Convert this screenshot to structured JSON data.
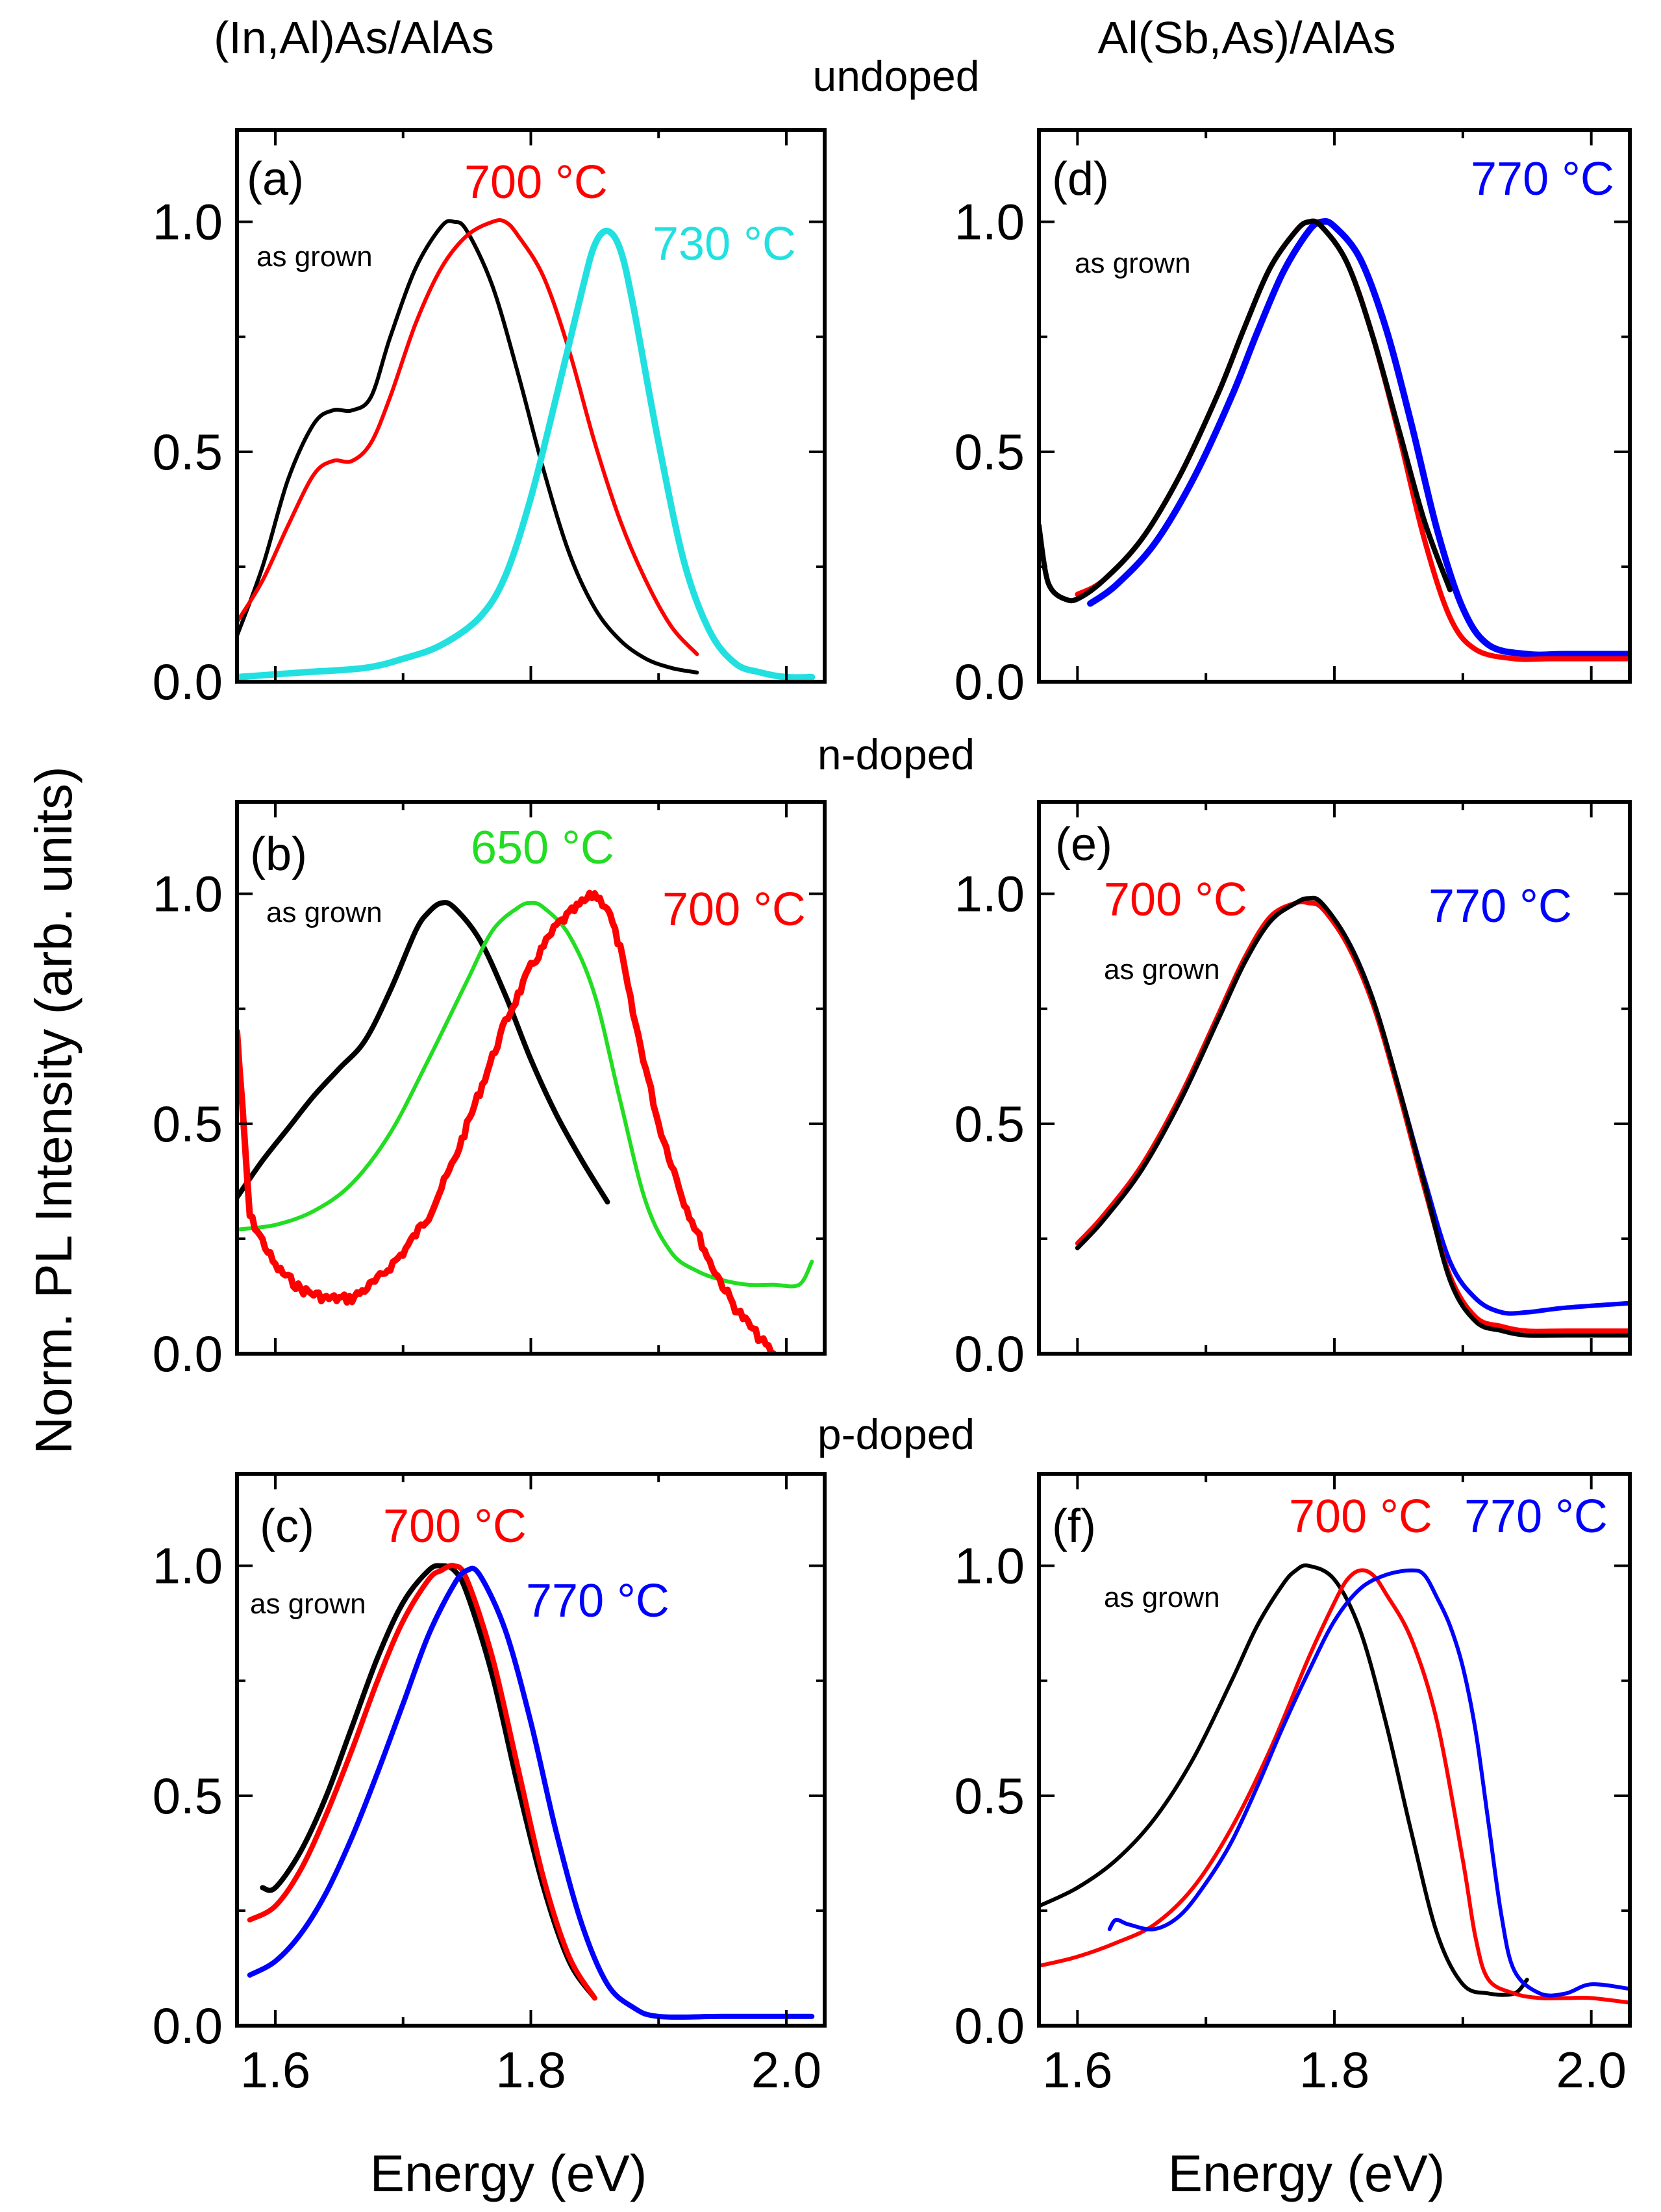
{
  "figure": {
    "column_titles": [
      "(In,Al)As/AlAs",
      "Al(Sb,As)/AlAs"
    ],
    "row_titles": [
      "undoped",
      "n-doped",
      "p-doped"
    ],
    "ylabel": "Norm. PL Intensity (arb. units)",
    "xlabel": "Energy (eV)",
    "as_grown_label": "as grown",
    "colors": {
      "as_grown": "#000000",
      "650": "#22dd22",
      "700": "#ff0000",
      "730": "#22e0e0",
      "770": "#0000ff"
    }
  },
  "chart_data": [
    {
      "type": "line",
      "panel": "(a)",
      "material": "(In,Al)As/AlAs",
      "doping": "undoped",
      "title": "",
      "xlabel": "Energy (eV)",
      "ylabel": "Norm. PL Intensity (arb. units)",
      "xlim": [
        1.57,
        2.03
      ],
      "ylim": [
        0,
        1.2
      ],
      "xticks": [
        "1.6",
        "1.8",
        "2.0"
      ],
      "yticks": [
        "0.0",
        "0.5",
        "1.0"
      ],
      "annotations": [
        "as grown",
        "700 °C",
        "730 °C"
      ],
      "series": [
        {
          "name": "as grown",
          "color": "#000000",
          "width": 6,
          "x": [
            1.57,
            1.59,
            1.61,
            1.63,
            1.645,
            1.66,
            1.675,
            1.69,
            1.71,
            1.73,
            1.74,
            1.75,
            1.77,
            1.79,
            1.81,
            1.83,
            1.85,
            1.87,
            1.89,
            1.91,
            1.93
          ],
          "y": [
            0.1,
            0.25,
            0.44,
            0.56,
            0.59,
            0.59,
            0.62,
            0.75,
            0.9,
            0.99,
            1.0,
            0.98,
            0.86,
            0.67,
            0.46,
            0.28,
            0.16,
            0.09,
            0.05,
            0.03,
            0.02
          ]
        },
        {
          "name": "700 °C",
          "color": "#ff0000",
          "width": 6,
          "x": [
            1.57,
            1.59,
            1.61,
            1.63,
            1.645,
            1.66,
            1.675,
            1.69,
            1.71,
            1.73,
            1.75,
            1.77,
            1.78,
            1.79,
            1.81,
            1.83,
            1.85,
            1.87,
            1.89,
            1.91,
            1.93
          ],
          "y": [
            0.13,
            0.22,
            0.34,
            0.45,
            0.48,
            0.48,
            0.52,
            0.62,
            0.78,
            0.9,
            0.97,
            1.0,
            1.0,
            0.97,
            0.88,
            0.72,
            0.52,
            0.35,
            0.22,
            0.12,
            0.06
          ]
        },
        {
          "name": "730 °C",
          "color": "#22e0e0",
          "width": 10,
          "x": [
            1.57,
            1.62,
            1.67,
            1.7,
            1.73,
            1.76,
            1.78,
            1.8,
            1.82,
            1.84,
            1.85,
            1.86,
            1.87,
            1.88,
            1.9,
            1.92,
            1.94,
            1.96,
            1.98,
            2.0,
            2.02
          ],
          "y": [
            0.01,
            0.02,
            0.03,
            0.05,
            0.08,
            0.14,
            0.23,
            0.4,
            0.62,
            0.85,
            0.95,
            0.98,
            0.94,
            0.82,
            0.52,
            0.26,
            0.11,
            0.04,
            0.02,
            0.01,
            0.01
          ]
        }
      ]
    },
    {
      "type": "line",
      "panel": "(b)",
      "material": "(In,Al)As/AlAs",
      "doping": "n-doped",
      "title": "",
      "xlabel": "Energy (eV)",
      "ylabel": "Norm. PL Intensity (arb. units)",
      "xlim": [
        1.57,
        2.03
      ],
      "ylim": [
        0,
        1.2
      ],
      "xticks": [
        "1.6",
        "1.8",
        "2.0"
      ],
      "yticks": [
        "0.0",
        "0.5",
        "1.0"
      ],
      "annotations": [
        "as grown",
        "650 °C",
        "700 °C"
      ],
      "series": [
        {
          "name": "as grown",
          "color": "#000000",
          "width": 8,
          "x": [
            1.57,
            1.59,
            1.61,
            1.63,
            1.65,
            1.67,
            1.69,
            1.71,
            1.72,
            1.73,
            1.74,
            1.76,
            1.78,
            1.8,
            1.82,
            1.84,
            1.86
          ],
          "y": [
            0.34,
            0.42,
            0.49,
            0.56,
            0.62,
            0.68,
            0.79,
            0.92,
            0.96,
            0.98,
            0.97,
            0.9,
            0.78,
            0.64,
            0.52,
            0.42,
            0.33
          ]
        },
        {
          "name": "650 °C",
          "color": "#22dd22",
          "width": 6,
          "x": [
            1.57,
            1.6,
            1.63,
            1.66,
            1.69,
            1.72,
            1.75,
            1.77,
            1.79,
            1.8,
            1.81,
            1.83,
            1.85,
            1.87,
            1.89,
            1.91,
            1.93,
            1.95,
            1.97,
            1.99,
            2.01,
            2.02
          ],
          "y": [
            0.27,
            0.28,
            0.31,
            0.37,
            0.48,
            0.64,
            0.81,
            0.92,
            0.97,
            0.98,
            0.97,
            0.91,
            0.78,
            0.55,
            0.33,
            0.22,
            0.18,
            0.16,
            0.15,
            0.15,
            0.15,
            0.2
          ]
        },
        {
          "name": "700 °C",
          "color": "#ff0000",
          "width": 10,
          "noisy": true,
          "x": [
            1.57,
            1.58,
            1.6,
            1.62,
            1.64,
            1.66,
            1.68,
            1.7,
            1.72,
            1.74,
            1.76,
            1.78,
            1.8,
            1.82,
            1.84,
            1.85,
            1.86,
            1.87,
            1.88,
            1.9,
            1.92,
            1.94,
            1.96,
            1.98,
            1.99
          ],
          "y": [
            0.7,
            0.3,
            0.19,
            0.14,
            0.12,
            0.12,
            0.16,
            0.22,
            0.3,
            0.42,
            0.57,
            0.72,
            0.84,
            0.93,
            0.98,
            1.0,
            0.97,
            0.88,
            0.74,
            0.5,
            0.33,
            0.2,
            0.1,
            0.03,
            0.0
          ]
        }
      ]
    },
    {
      "type": "line",
      "panel": "(c)",
      "material": "(In,Al)As/AlAs",
      "doping": "p-doped",
      "title": "",
      "xlabel": "Energy (eV)",
      "ylabel": "Norm. PL Intensity (arb. units)",
      "xlim": [
        1.57,
        2.03
      ],
      "ylim": [
        0,
        1.2
      ],
      "xticks": [
        "1.6",
        "1.8",
        "2.0"
      ],
      "yticks": [
        "0.0",
        "0.5",
        "1.0"
      ],
      "annotations": [
        "as grown",
        "700 °C",
        "770 °C"
      ],
      "series": [
        {
          "name": "as grown",
          "color": "#000000",
          "width": 8,
          "x": [
            1.59,
            1.6,
            1.62,
            1.64,
            1.66,
            1.68,
            1.7,
            1.72,
            1.73,
            1.74,
            1.75,
            1.77,
            1.79,
            1.81,
            1.83,
            1.85
          ],
          "y": [
            0.3,
            0.3,
            0.38,
            0.5,
            0.65,
            0.8,
            0.92,
            0.99,
            1.0,
            0.99,
            0.94,
            0.76,
            0.52,
            0.3,
            0.14,
            0.06
          ]
        },
        {
          "name": "700 °C",
          "color": "#ff0000",
          "width": 8,
          "x": [
            1.58,
            1.6,
            1.62,
            1.64,
            1.66,
            1.68,
            1.7,
            1.72,
            1.73,
            1.74,
            1.75,
            1.77,
            1.79,
            1.81,
            1.83,
            1.85
          ],
          "y": [
            0.23,
            0.26,
            0.34,
            0.46,
            0.6,
            0.75,
            0.88,
            0.97,
            0.99,
            1.0,
            0.97,
            0.8,
            0.56,
            0.32,
            0.15,
            0.06
          ]
        },
        {
          "name": "770 °C",
          "color": "#0000ff",
          "width": 8,
          "x": [
            1.58,
            1.6,
            1.62,
            1.64,
            1.66,
            1.68,
            1.7,
            1.72,
            1.74,
            1.75,
            1.76,
            1.78,
            1.8,
            1.82,
            1.84,
            1.86,
            1.88,
            1.9,
            1.95,
            2.0,
            2.02
          ],
          "y": [
            0.11,
            0.14,
            0.2,
            0.29,
            0.41,
            0.55,
            0.7,
            0.85,
            0.96,
            0.99,
            0.98,
            0.86,
            0.66,
            0.42,
            0.22,
            0.09,
            0.04,
            0.02,
            0.02,
            0.02,
            0.02
          ]
        }
      ]
    },
    {
      "type": "line",
      "panel": "(d)",
      "material": "Al(Sb,As)/AlAs",
      "doping": "undoped",
      "title": "",
      "xlabel": "Energy (eV)",
      "ylabel": "Norm. PL Intensity (arb. units)",
      "xlim": [
        1.57,
        2.03
      ],
      "ylim": [
        0,
        1.2
      ],
      "xticks": [
        "1.6",
        "1.8",
        "2.0"
      ],
      "yticks": [
        "0.0",
        "0.5",
        "1.0"
      ],
      "annotations": [
        "as grown",
        "770 °C"
      ],
      "series": [
        {
          "name": "770 °C",
          "color": "#0000ff",
          "width": 10,
          "x": [
            1.61,
            1.63,
            1.66,
            1.69,
            1.72,
            1.74,
            1.76,
            1.78,
            1.79,
            1.8,
            1.82,
            1.84,
            1.86,
            1.88,
            1.9,
            1.92,
            1.95,
            1.98,
            2.03
          ],
          "y": [
            0.17,
            0.21,
            0.3,
            0.44,
            0.62,
            0.76,
            0.89,
            0.98,
            1.0,
            0.99,
            0.92,
            0.77,
            0.56,
            0.33,
            0.16,
            0.08,
            0.06,
            0.06,
            0.06
          ]
        },
        {
          "name": "700 °C",
          "color": "#ff0000",
          "width": 8,
          "x": [
            1.6,
            1.62,
            1.65,
            1.68,
            1.71,
            1.73,
            1.75,
            1.77,
            1.78,
            1.79,
            1.81,
            1.83,
            1.85,
            1.87,
            1.89,
            1.91,
            1.94,
            1.97,
            2.03
          ],
          "y": [
            0.19,
            0.22,
            0.31,
            0.45,
            0.63,
            0.77,
            0.9,
            0.98,
            1.0,
            0.99,
            0.91,
            0.75,
            0.54,
            0.31,
            0.14,
            0.07,
            0.05,
            0.05,
            0.05
          ]
        },
        {
          "name": "as grown",
          "color": "#000000",
          "width": 8,
          "x": [
            1.57,
            1.575,
            1.58,
            1.59,
            1.6,
            1.62,
            1.65,
            1.68,
            1.71,
            1.73,
            1.75,
            1.77,
            1.78,
            1.79,
            1.81,
            1.83,
            1.85,
            1.87,
            1.89
          ],
          "y": [
            0.34,
            0.24,
            0.2,
            0.18,
            0.18,
            0.22,
            0.31,
            0.45,
            0.63,
            0.77,
            0.9,
            0.98,
            1.0,
            0.99,
            0.91,
            0.75,
            0.55,
            0.35,
            0.2
          ]
        }
      ]
    },
    {
      "type": "line",
      "panel": "(e)",
      "material": "Al(Sb,As)/AlAs",
      "doping": "n-doped",
      "title": "",
      "xlabel": "Energy (eV)",
      "ylabel": "Norm. PL Intensity (arb. units)",
      "xlim": [
        1.57,
        2.03
      ],
      "ylim": [
        0,
        1.2
      ],
      "xticks": [
        "1.6",
        "1.8",
        "2.0"
      ],
      "yticks": [
        "0.0",
        "0.5",
        "1.0"
      ],
      "annotations": [
        "700 °C",
        "770 °C",
        "as grown"
      ],
      "series": [
        {
          "name": "770 °C",
          "color": "#0000ff",
          "width": 7,
          "x": [
            1.6,
            1.62,
            1.65,
            1.68,
            1.71,
            1.73,
            1.75,
            1.77,
            1.78,
            1.79,
            1.81,
            1.83,
            1.85,
            1.87,
            1.89,
            1.91,
            1.93,
            1.95,
            1.98,
            2.03
          ],
          "y": [
            0.23,
            0.29,
            0.4,
            0.55,
            0.73,
            0.85,
            0.94,
            0.98,
            0.98,
            0.97,
            0.9,
            0.77,
            0.58,
            0.38,
            0.2,
            0.12,
            0.09,
            0.09,
            0.1,
            0.11
          ]
        },
        {
          "name": "700 °C",
          "color": "#ff0000",
          "width": 7,
          "x": [
            1.6,
            1.62,
            1.65,
            1.68,
            1.71,
            1.73,
            1.75,
            1.77,
            1.78,
            1.79,
            1.81,
            1.83,
            1.85,
            1.87,
            1.89,
            1.91,
            1.93,
            1.95,
            1.98,
            2.03
          ],
          "y": [
            0.24,
            0.3,
            0.41,
            0.56,
            0.74,
            0.86,
            0.95,
            0.98,
            0.98,
            0.97,
            0.89,
            0.76,
            0.57,
            0.36,
            0.17,
            0.08,
            0.06,
            0.05,
            0.05,
            0.05
          ]
        },
        {
          "name": "as grown",
          "color": "#000000",
          "width": 7,
          "x": [
            1.6,
            1.62,
            1.65,
            1.68,
            1.71,
            1.73,
            1.75,
            1.77,
            1.78,
            1.79,
            1.81,
            1.83,
            1.85,
            1.87,
            1.89,
            1.91,
            1.93,
            1.95,
            1.98,
            2.03
          ],
          "y": [
            0.23,
            0.29,
            0.4,
            0.55,
            0.73,
            0.85,
            0.94,
            0.98,
            0.99,
            0.98,
            0.9,
            0.77,
            0.58,
            0.37,
            0.16,
            0.07,
            0.05,
            0.04,
            0.04,
            0.04
          ]
        }
      ]
    },
    {
      "type": "line",
      "panel": "(f)",
      "material": "Al(Sb,As)/AlAs",
      "doping": "p-doped",
      "title": "",
      "xlabel": "Energy (eV)",
      "ylabel": "Norm. PL Intensity (arb. units)",
      "xlim": [
        1.57,
        2.03
      ],
      "ylim": [
        0,
        1.2
      ],
      "xticks": [
        "1.6",
        "1.8",
        "2.0"
      ],
      "yticks": [
        "0.0",
        "0.5",
        "1.0"
      ],
      "annotations": [
        "700 °C",
        "770 °C",
        "as grown"
      ],
      "series": [
        {
          "name": "as grown",
          "color": "#000000",
          "width": 6,
          "x": [
            1.57,
            1.6,
            1.63,
            1.66,
            1.69,
            1.72,
            1.74,
            1.76,
            1.77,
            1.78,
            1.8,
            1.82,
            1.84,
            1.86,
            1.88,
            1.9,
            1.92,
            1.94,
            1.95
          ],
          "y": [
            0.26,
            0.3,
            0.36,
            0.45,
            0.58,
            0.75,
            0.87,
            0.96,
            0.99,
            1.0,
            0.97,
            0.86,
            0.66,
            0.42,
            0.2,
            0.09,
            0.07,
            0.07,
            0.1
          ]
        },
        {
          "name": "700 °C",
          "color": "#ff0000",
          "width": 6,
          "x": [
            1.57,
            1.6,
            1.63,
            1.66,
            1.69,
            1.72,
            1.75,
            1.78,
            1.8,
            1.81,
            1.82,
            1.83,
            1.84,
            1.86,
            1.88,
            1.9,
            1.91,
            1.92,
            1.94,
            1.96,
            1.98,
            2.0,
            2.03
          ],
          "y": [
            0.13,
            0.15,
            0.18,
            0.22,
            0.3,
            0.43,
            0.6,
            0.8,
            0.92,
            0.97,
            0.99,
            0.98,
            0.94,
            0.84,
            0.66,
            0.36,
            0.19,
            0.1,
            0.07,
            0.06,
            0.06,
            0.06,
            0.05
          ]
        },
        {
          "name": "770 °C",
          "color": "#0000ff",
          "width": 6,
          "x": [
            1.625,
            1.63,
            1.64,
            1.66,
            1.68,
            1.7,
            1.72,
            1.74,
            1.76,
            1.78,
            1.8,
            1.82,
            1.84,
            1.86,
            1.87,
            1.88,
            1.89,
            1.9,
            1.91,
            1.92,
            1.93,
            1.94,
            1.96,
            1.98,
            2.0,
            2.03
          ],
          "y": [
            0.21,
            0.23,
            0.22,
            0.21,
            0.24,
            0.31,
            0.4,
            0.52,
            0.65,
            0.77,
            0.88,
            0.95,
            0.98,
            0.99,
            0.98,
            0.93,
            0.87,
            0.78,
            0.64,
            0.44,
            0.24,
            0.12,
            0.07,
            0.07,
            0.09,
            0.08
          ]
        }
      ]
    }
  ]
}
